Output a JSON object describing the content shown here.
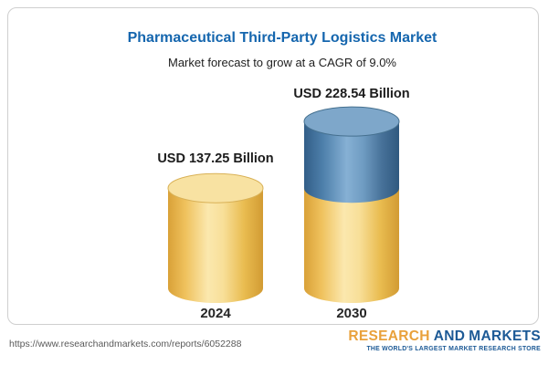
{
  "header": {
    "title": "Pharmaceutical Third-Party Logistics Market",
    "subtitle": "Market forecast to grow at a CAGR of 9.0%"
  },
  "chart_data": {
    "type": "bar",
    "style": "3d-cylinder-stacked",
    "title": "Pharmaceutical Third-Party Logistics Market",
    "subtitle": "Market forecast to grow at a CAGR of 9.0%",
    "unit": "USD Billion",
    "cagr": "9.0%",
    "categories": [
      "2024",
      "2030"
    ],
    "totals": [
      137.25,
      228.54
    ],
    "value_labels": [
      "USD 137.25 Billion",
      "USD 228.54 Billion"
    ],
    "ylim": [
      0,
      240
    ],
    "legend": "none",
    "bars": [
      {
        "category": "2024",
        "total": 137.25,
        "label": "USD 137.25 Billion",
        "segments": [
          {
            "name": "base-2024",
            "color": "yellow",
            "value": 137.25
          }
        ]
      },
      {
        "category": "2030",
        "total": 228.54,
        "label": "USD 228.54 Billion",
        "segments": [
          {
            "name": "base-2024",
            "color": "yellow",
            "value": 137.25
          },
          {
            "name": "growth-to-2030",
            "color": "blue",
            "value": 91.29
          }
        ]
      }
    ]
  },
  "colors": {
    "title": "#1566AE",
    "accent_yellow": "#F2CE6E",
    "accent_blue": "#4A7FAC",
    "lids": {
      "yellow": {
        "fill": "#F8E2A2",
        "stroke": "#D9B156"
      },
      "blue": {
        "fill": "#7EA7CA",
        "stroke": "#45708F"
      }
    },
    "logo_orange": "#E9A13B",
    "logo_navy": "#1D5A96"
  },
  "footer": {
    "url": "https://www.researchandmarkets.com/reports/6052288",
    "logo": {
      "word1": "RESEARCH",
      "word2": "AND",
      "word3": "MARKETS",
      "tagline": "THE WORLD'S LARGEST MARKET RESEARCH STORE"
    }
  }
}
